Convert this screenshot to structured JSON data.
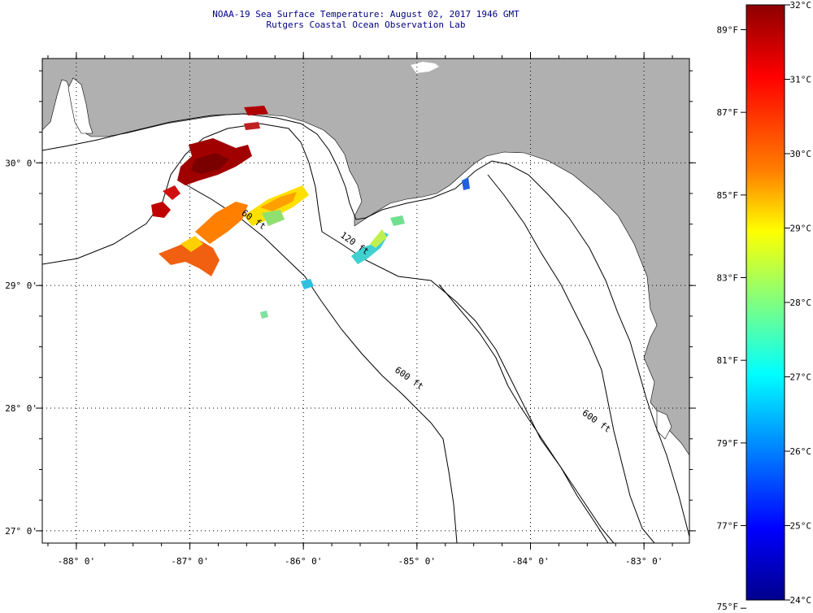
{
  "title": {
    "line1": "NOAA-19 Sea Surface Temperature:  August 02, 2017 1946 GMT",
    "line2": "Rutgers Coastal Ocean Observation Lab"
  },
  "map": {
    "lon_range": [
      -88.3,
      -82.6
    ],
    "lat_range": [
      26.9,
      30.85
    ],
    "lon_ticks": [
      {
        "value": -88,
        "label": "-88° 0'"
      },
      {
        "value": -87,
        "label": "-87° 0'"
      },
      {
        "value": -86,
        "label": "-86° 0'"
      },
      {
        "value": -85,
        "label": "-85° 0'"
      },
      {
        "value": -84,
        "label": "-84° 0'"
      },
      {
        "value": -83,
        "label": "-83° 0'"
      }
    ],
    "lat_ticks": [
      {
        "value": 30,
        "label": "30° 0'"
      },
      {
        "value": 29,
        "label": "29° 0'"
      },
      {
        "value": 28,
        "label": "28° 0'"
      },
      {
        "value": 27,
        "label": "27° 0'"
      }
    ],
    "contours": [
      {
        "label": "60 ft",
        "label_lon": -86.55,
        "label_lat": 29.58
      },
      {
        "label": "120 ft",
        "label_lon": -85.68,
        "label_lat": 29.4
      },
      {
        "label": "600 ft",
        "label_lon": -85.2,
        "label_lat": 28.3
      },
      {
        "label": "600 ft",
        "label_lon": -83.55,
        "label_lat": 27.95
      }
    ],
    "land_color": "#b0b0b0",
    "water_color": "#ffffff",
    "grid": "dotted"
  },
  "colorbar": {
    "celsius_labels": [
      {
        "value": 32,
        "label": "32°C"
      },
      {
        "value": 31,
        "label": "31°C"
      },
      {
        "value": 30,
        "label": "30°C"
      },
      {
        "value": 29,
        "label": "29°C"
      },
      {
        "value": 28,
        "label": "28°C"
      },
      {
        "value": 27,
        "label": "27°C"
      },
      {
        "value": 26,
        "label": "26°C"
      },
      {
        "value": 25,
        "label": "25°C"
      },
      {
        "value": 24,
        "label": "24°C"
      }
    ],
    "fahrenheit_labels": [
      {
        "value": 89,
        "label": "89°F"
      },
      {
        "value": 87,
        "label": "87°F"
      },
      {
        "value": 85,
        "label": "85°F"
      },
      {
        "value": 83,
        "label": "83°F"
      },
      {
        "value": 81,
        "label": "81°F"
      },
      {
        "value": 79,
        "label": "79°F"
      },
      {
        "value": 77,
        "label": "77°F"
      },
      {
        "value": 75,
        "label": "75°F"
      }
    ],
    "range_c": [
      24,
      32
    ],
    "range_f": [
      75.2,
      89.6
    ],
    "colors": [
      "#00008c",
      "#0000ff",
      "#0080ff",
      "#00ffff",
      "#80ff80",
      "#ffff00",
      "#ff8000",
      "#ff0000",
      "#8c0000"
    ]
  }
}
